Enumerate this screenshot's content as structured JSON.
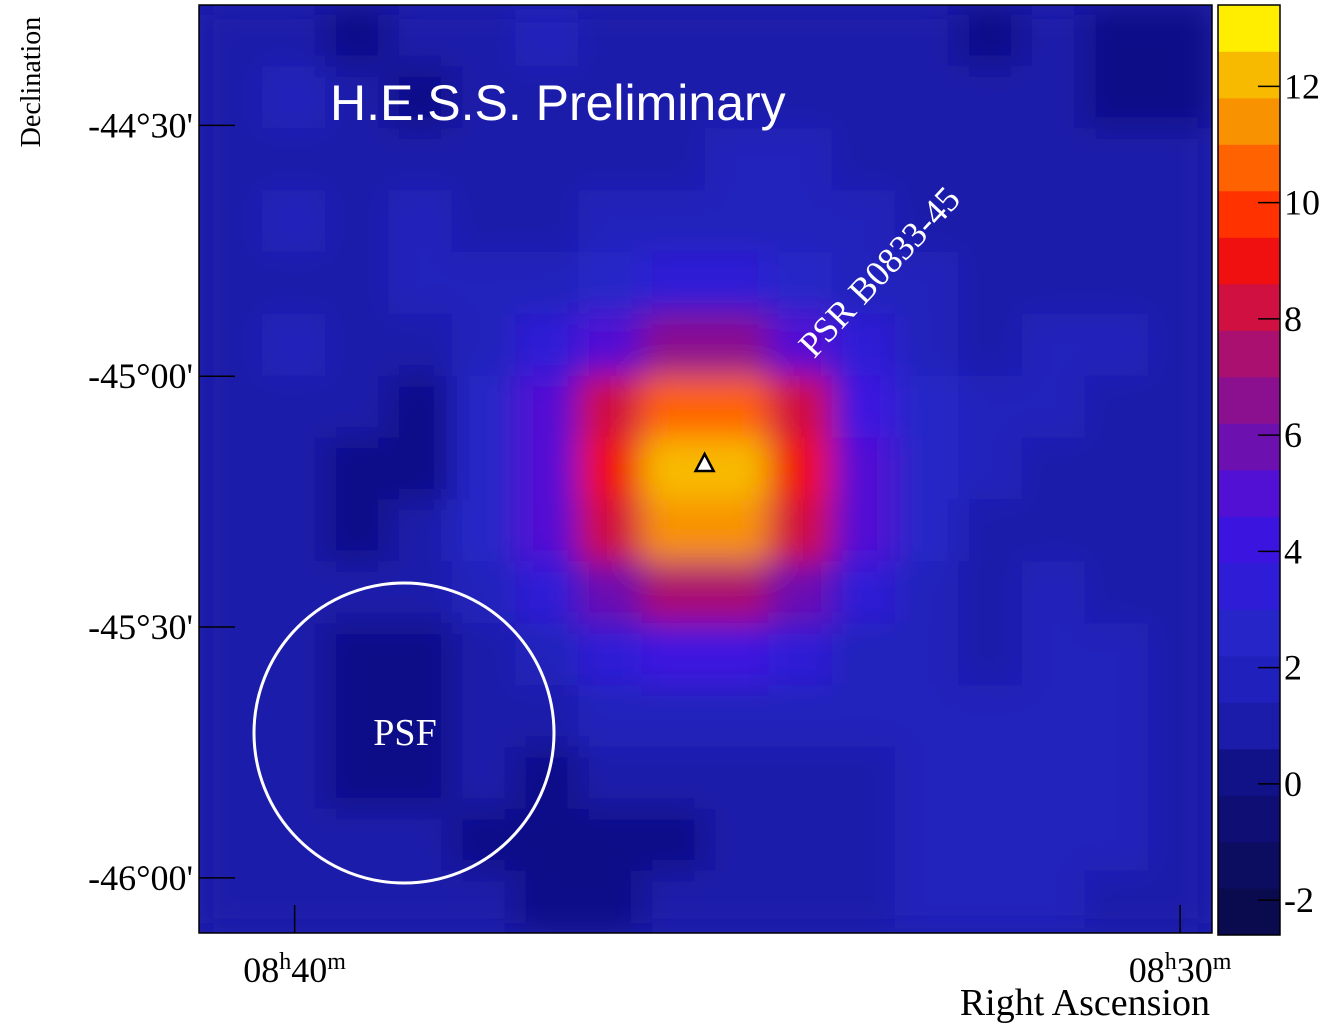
{
  "chart_data": {
    "type": "heatmap",
    "title": "H.E.S.S. Preliminary",
    "annotation": "PSR B0833-45",
    "psf_label": "PSF",
    "x_label": "Right Ascension",
    "y_label": "Declination",
    "xlim": [
      521.08,
      509.64
    ],
    "xticks": [
      {
        "value": 520,
        "label": "08h40m"
      },
      {
        "value": 510,
        "label": "08h30m"
      }
    ],
    "ylim": [
      -46.11,
      -44.26
    ],
    "yticks": [
      {
        "value": -44.5,
        "label": "-44°30'"
      },
      {
        "value": -45,
        "label": "-45°00'"
      },
      {
        "value": -45.5,
        "label": "-45°30'"
      },
      {
        "value": -46,
        "label": "-46°00'"
      }
    ],
    "zlim": [
      -2.6,
      13.4
    ],
    "zticks": [
      -2,
      0,
      2,
      4,
      6,
      8,
      10,
      12
    ],
    "colors": [
      "#0a0a4e",
      "#0c0c60",
      "#0e0e74",
      "#111188",
      "#1c1caa",
      "#2020bc",
      "#2626c8",
      "#2e1cd6",
      "#3c14e0",
      "#5210d4",
      "#6c10b0",
      "#8a1090",
      "#aa1070",
      "#d01040",
      "#f01010",
      "#ff3200",
      "#ff6200",
      "#f89200",
      "#f8ba00",
      "#ffee00"
    ],
    "z": [
      [
        0.8,
        1.2,
        0.5,
        0.6,
        1.0,
        1.4,
        1.2,
        0.8,
        0.6,
        0.9,
        1.1,
        0.7,
        0.5,
        0.6,
        0.4,
        0.3
      ],
      [
        1.0,
        1.5,
        0.7,
        0.5,
        0.9,
        1.3,
        1.1,
        0.9,
        0.7,
        1.2,
        1.0,
        0.8,
        0.6,
        0.8,
        0.5,
        0.4
      ],
      [
        1.3,
        1.2,
        0.9,
        0.8,
        1.1,
        1.0,
        1.2,
        1.3,
        1.4,
        1.6,
        1.3,
        0.9,
        0.8,
        1.0,
        0.7,
        0.6
      ],
      [
        1.1,
        1.4,
        1.2,
        1.6,
        1.3,
        1.2,
        1.7,
        1.9,
        1.9,
        1.7,
        1.4,
        1.1,
        0.9,
        1.2,
        1.0,
        0.8
      ],
      [
        0.9,
        1.3,
        1.1,
        1.5,
        1.8,
        2.0,
        2.8,
        3.5,
        3.5,
        2.8,
        2.0,
        1.5,
        1.1,
        1.3,
        1.2,
        0.9
      ],
      [
        1.0,
        1.4,
        0.9,
        1.2,
        1.8,
        3.2,
        5.2,
        6.8,
        6.8,
        5.1,
        3.1,
        1.8,
        1.3,
        1.5,
        1.4,
        1.0
      ],
      [
        1.2,
        1.1,
        0.6,
        0.4,
        2.4,
        4.6,
        8.0,
        10.6,
        10.6,
        7.8,
        4.3,
        2.4,
        1.5,
        1.6,
        1.3,
        1.1
      ],
      [
        1.1,
        0.8,
        0.3,
        0.2,
        2.6,
        5.3,
        9.3,
        12.5,
        12.5,
        9.2,
        5.2,
        2.6,
        1.4,
        1.3,
        1.2,
        1.0
      ],
      [
        1.0,
        0.9,
        0.5,
        0.6,
        2.5,
        4.8,
        8.3,
        11.1,
        11.1,
        8.2,
        4.7,
        2.5,
        1.3,
        1.2,
        1.1,
        0.9
      ],
      [
        0.9,
        1.0,
        0.8,
        1.0,
        1.9,
        3.4,
        5.7,
        7.5,
        7.4,
        5.6,
        3.4,
        1.9,
        1.2,
        1.4,
        1.3,
        1.0
      ],
      [
        0.8,
        0.7,
        0.4,
        0.5,
        1.2,
        2.1,
        3.2,
        4.0,
        4.0,
        3.1,
        2.1,
        1.5,
        1.3,
        1.5,
        1.4,
        1.1
      ],
      [
        0.9,
        0.6,
        0.2,
        0.3,
        0.8,
        1.2,
        1.8,
        2.0,
        2.0,
        1.8,
        1.4,
        1.4,
        1.6,
        1.7,
        1.5,
        1.2
      ],
      [
        1.0,
        0.7,
        0.4,
        0.5,
        0.6,
        0.5,
        0.8,
        1.3,
        1.3,
        1.0,
        1.2,
        1.6,
        1.9,
        2.0,
        1.7,
        1.3
      ],
      [
        1.1,
        0.9,
        0.6,
        0.7,
        0.4,
        0.1,
        0.2,
        0.5,
        0.6,
        0.8,
        1.1,
        1.7,
        2.1,
        1.9,
        1.5,
        1.2
      ],
      [
        1.0,
        0.8,
        0.7,
        0.9,
        0.6,
        0.3,
        0.4,
        0.6,
        0.7,
        0.9,
        1.0,
        1.4,
        1.6,
        1.5,
        1.2,
        1.0
      ]
    ],
    "source": {
      "x": 515.37,
      "y": -45.175
    }
  }
}
